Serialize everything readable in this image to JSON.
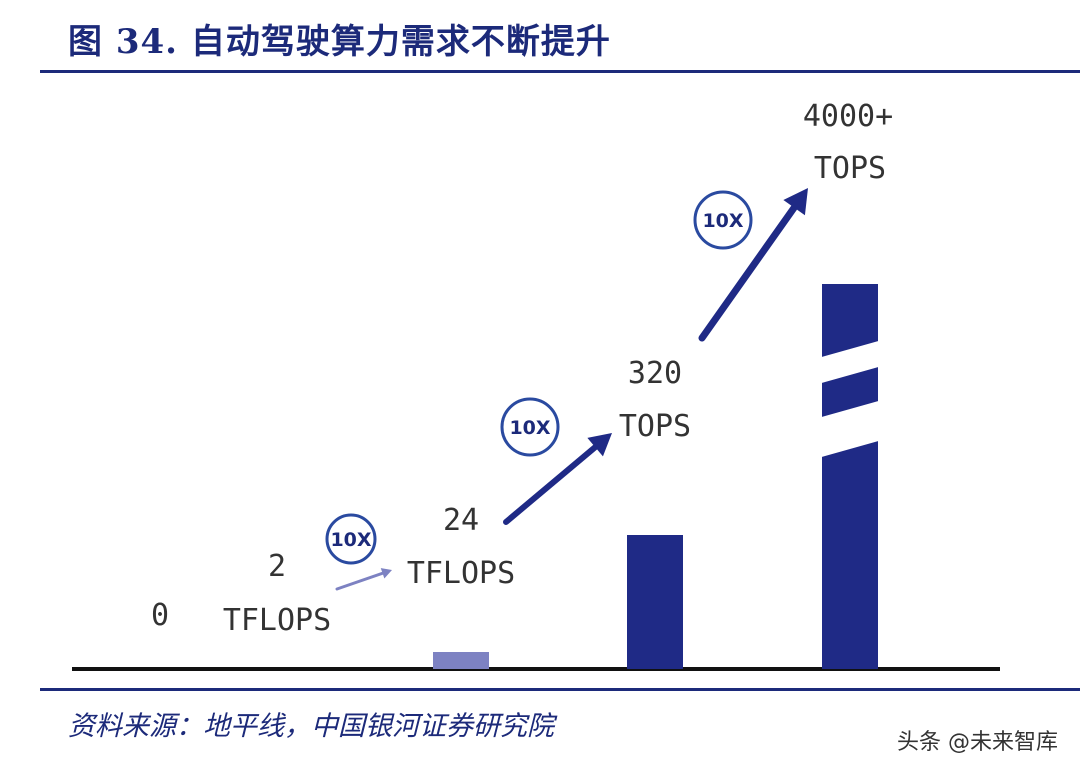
{
  "title": "图 34. 自动驾驶算力需求不断提升",
  "source": "资料来源：地平线，中国银河证券研究院",
  "watermark": "头条 @未来智库",
  "colors": {
    "accent": "#1c2a7a",
    "bar": "#1f2a86",
    "bar_light": "#7d82c2"
  },
  "chart_data": {
    "type": "bar",
    "title": "图 34. 自动驾驶算力需求不断提升",
    "categories": [
      "0",
      "2 TFLOPS",
      "24 TFLOPS",
      "320 TOPS",
      "4000+ TOPS"
    ],
    "values": [
      0,
      2,
      24,
      320,
      4000
    ],
    "value_labels": [
      [
        "0"
      ],
      [
        "2",
        "TFLOPS"
      ],
      [
        "24",
        "TFLOPS"
      ],
      [
        "320",
        "TOPS"
      ],
      [
        "4000+",
        "TOPS"
      ]
    ],
    "axis_break": true,
    "growth_annotations": [
      "10X",
      "10X",
      "10X"
    ],
    "legend": "none",
    "grid": false
  }
}
